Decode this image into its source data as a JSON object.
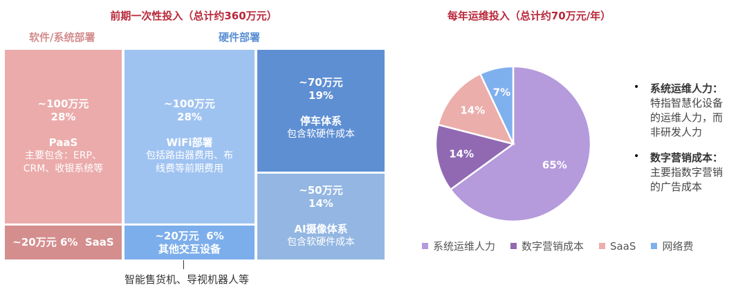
{
  "left": {
    "title": "前期一次性投入（总计约360万元）",
    "software_heading": "软件/系统部署",
    "hardware_heading": "硬件部署",
    "boxes": {
      "paas": {
        "amount": "~100万元",
        "pct": "28%",
        "name": "PaaS",
        "desc1": "主要包含：ERP、",
        "desc2": "CRM、收银系统等"
      },
      "saas": {
        "label": "~20万元 6%  SaaS"
      },
      "wifi": {
        "amount": "~100万元",
        "pct": "28%",
        "name": "WiFi部署",
        "desc1": "包括路由器费用、布",
        "desc2": "线费等前期费用"
      },
      "other": {
        "line1": "~20万元  6%",
        "line2": "其他交互设备"
      },
      "parking": {
        "amount": "~70万元",
        "pct": "19%",
        "name": "停车体系",
        "desc": "包含软硬件成本"
      },
      "ai": {
        "amount": "~50万元",
        "pct": "14%",
        "name": "AI摄像体系",
        "desc": "包含软硬件成本"
      }
    },
    "callout": "智能售货机、导视机器人等",
    "colors": {
      "paas": "#EBABAB",
      "saas": "#D48E8E",
      "wifi": "#9FC3F1",
      "other": "#7CAEEB",
      "parking": "#5E8FD3",
      "ai": "#93B6E2"
    }
  },
  "chart_data": {
    "type": "pie",
    "title": "每年运维投入（总计约70万元/年）",
    "categories": [
      "系统运维人力",
      "数字营销成本",
      "SaaS",
      "网络费"
    ],
    "values": [
      65,
      14,
      14,
      7
    ],
    "labels": [
      "65%",
      "14%",
      "14%",
      "7%"
    ],
    "colors": [
      "#B59ADC",
      "#9069B2",
      "#EBAEAB",
      "#7FB0EE"
    ],
    "legend_position": "bottom"
  },
  "notes": [
    {
      "title": "系统运维人力：",
      "lines": [
        "特指智慧化设备",
        "的运维人力，而",
        "非研发人力"
      ]
    },
    {
      "title": "数字营销成本：",
      "lines": [
        "主要指数字营销",
        "的广告成本"
      ]
    }
  ],
  "bullet": "•"
}
